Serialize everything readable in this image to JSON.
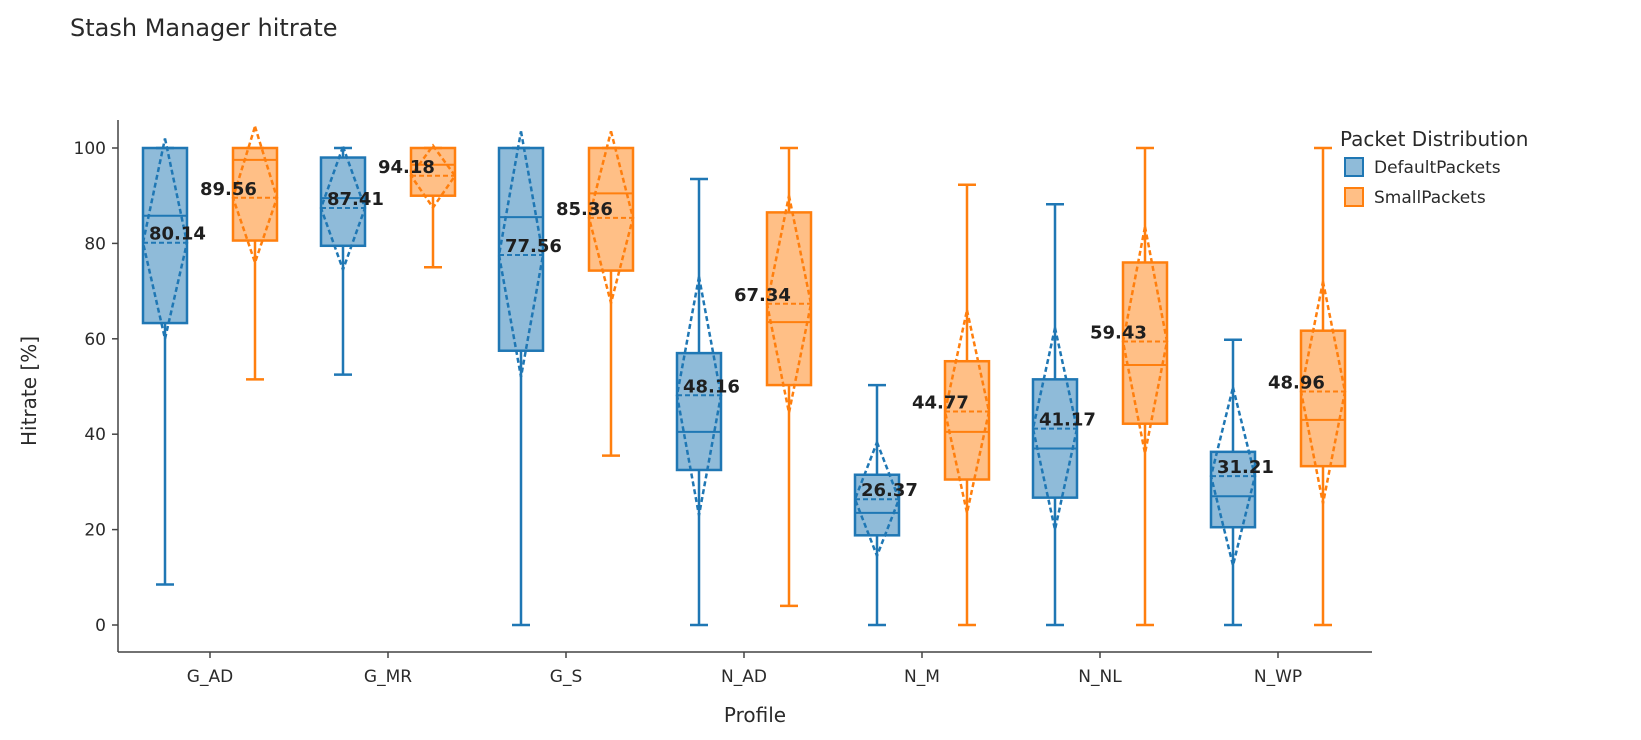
{
  "chart_data": {
    "type": "box",
    "title": "Stash Manager hitrate",
    "xlabel": "Profile",
    "ylabel": "Hitrate [%]",
    "ylim": [
      -5,
      105
    ],
    "yticks": [
      0,
      20,
      40,
      60,
      80,
      100
    ],
    "categories": [
      "G_AD",
      "G_MR",
      "G_S",
      "N_AD",
      "N_M",
      "N_NL",
      "N_WP"
    ],
    "grid": false,
    "legend": {
      "title": "Packet Distribution",
      "placement": "top-right"
    },
    "series": [
      {
        "name": "DefaultPackets",
        "color": "#1f77b4",
        "boxes": [
          {
            "min": 8.5,
            "q1": 63.3,
            "median": 85.8,
            "q3": 100,
            "max": 100,
            "mean": 80.14,
            "sd_low": 60,
            "sd_high": 102,
            "mean_label": "80.14"
          },
          {
            "min": 52.5,
            "q1": 79.5,
            "median": 89.5,
            "q3": 98,
            "max": 100,
            "mean": 87.41,
            "sd_low": 74.5,
            "sd_high": 100.3,
            "mean_label": "87.41"
          },
          {
            "min": 0,
            "q1": 57.5,
            "median": 85.5,
            "q3": 100,
            "max": 100,
            "mean": 77.56,
            "sd_low": 52,
            "sd_high": 103.5,
            "mean_label": "77.56"
          },
          {
            "min": 0,
            "q1": 32.5,
            "median": 40.5,
            "q3": 57,
            "max": 93.5,
            "mean": 48.16,
            "sd_low": 23,
            "sd_high": 73,
            "mean_label": "48.16"
          },
          {
            "min": 0,
            "q1": 18.8,
            "median": 23.5,
            "q3": 31.5,
            "max": 50.3,
            "mean": 26.37,
            "sd_low": 14.5,
            "sd_high": 38.3,
            "mean_label": "26.37"
          },
          {
            "min": 0,
            "q1": 26.7,
            "median": 37,
            "q3": 51.5,
            "max": 88.2,
            "mean": 41.17,
            "sd_low": 20,
            "sd_high": 62.3,
            "mean_label": "41.17"
          },
          {
            "min": 0,
            "q1": 20.5,
            "median": 27,
            "q3": 36.3,
            "max": 59.8,
            "mean": 31.21,
            "sd_low": 12.5,
            "sd_high": 49.8,
            "mean_label": "31.21"
          }
        ]
      },
      {
        "name": "SmallPackets",
        "color": "#ff7f0e",
        "boxes": [
          {
            "min": 51.5,
            "q1": 80.6,
            "median": 97.5,
            "q3": 100,
            "max": 100,
            "mean": 89.56,
            "sd_low": 76,
            "sd_high": 104.5,
            "mean_label": "89.56"
          },
          {
            "min": 75,
            "q1": 90,
            "median": 96.5,
            "q3": 100,
            "max": 100,
            "mean": 94.18,
            "sd_low": 87.5,
            "sd_high": 100.5,
            "mean_label": "94.18"
          },
          {
            "min": 35.5,
            "q1": 74.3,
            "median": 90.5,
            "q3": 100,
            "max": 100,
            "mean": 85.36,
            "sd_low": 67.5,
            "sd_high": 103.5,
            "mean_label": "85.36"
          },
          {
            "min": 4,
            "q1": 50.3,
            "median": 63.5,
            "q3": 86.5,
            "max": 100,
            "mean": 67.34,
            "sd_low": 44.5,
            "sd_high": 90,
            "mean_label": "67.34"
          },
          {
            "min": 0,
            "q1": 30.5,
            "median": 40.5,
            "q3": 55.3,
            "max": 92.3,
            "mean": 44.77,
            "sd_low": 23.5,
            "sd_high": 66,
            "mean_label": "44.77"
          },
          {
            "min": 0,
            "q1": 42.2,
            "median": 54.5,
            "q3": 76,
            "max": 100,
            "mean": 59.43,
            "sd_low": 36,
            "sd_high": 83.5,
            "mean_label": "59.43"
          },
          {
            "min": 0,
            "q1": 33.3,
            "median": 43,
            "q3": 61.7,
            "max": 100,
            "mean": 48.96,
            "sd_low": 25.5,
            "sd_high": 72,
            "mean_label": "48.96"
          }
        ]
      }
    ]
  }
}
